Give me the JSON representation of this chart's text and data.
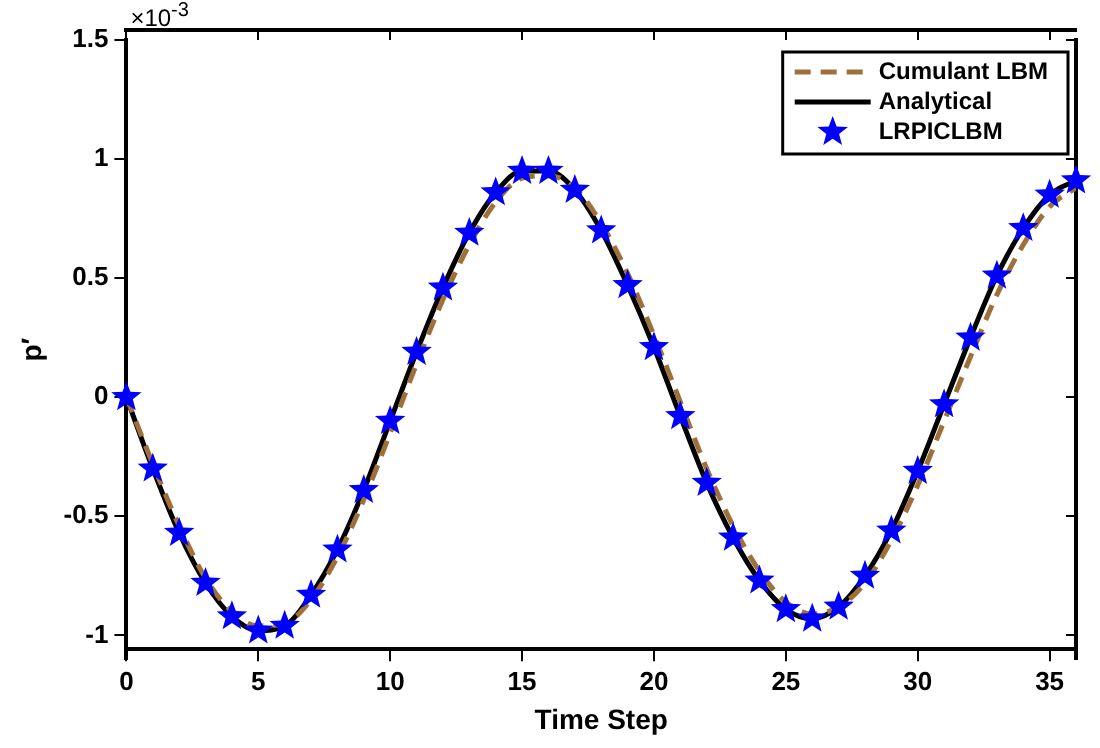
{
  "chart_data": {
    "type": "line",
    "xlabel": "Time Step",
    "ylabel": "p′",
    "annotations": [
      "×10$^{-3}$"
    ],
    "x": [
      0,
      1,
      2,
      3,
      4,
      5,
      6,
      7,
      8,
      9,
      10,
      11,
      12,
      13,
      14,
      15,
      16,
      17,
      18,
      19,
      20,
      21,
      22,
      23,
      24,
      25,
      26,
      27,
      28,
      29,
      30,
      31,
      32,
      33,
      34,
      35,
      36
    ],
    "xlim": [
      0,
      36
    ],
    "xticks": [
      0,
      5,
      10,
      15,
      20,
      25,
      30,
      35
    ],
    "ylim": [
      -1.1,
      1.5
    ],
    "yticks": [
      -1,
      -0.5,
      0,
      0.5,
      1,
      1.5
    ],
    "grid": false,
    "legend": "top right",
    "series": [
      {
        "name": "Cumulant LBM",
        "color": "#a0703a",
        "line_style": "dashed",
        "marker": "none",
        "values": [
          0,
          -0.28,
          -0.54,
          -0.76,
          -0.9,
          -0.96,
          -0.95,
          -0.85,
          -0.67,
          -0.43,
          -0.15,
          0.14,
          0.41,
          0.64,
          0.82,
          0.92,
          0.93,
          0.88,
          0.73,
          0.52,
          0.26,
          -0.02,
          -0.3,
          -0.54,
          -0.73,
          -0.86,
          -0.91,
          -0.88,
          -0.78,
          -0.6,
          -0.37,
          -0.1,
          0.17,
          0.43,
          0.64,
          0.8,
          0.88
        ]
      },
      {
        "name": "Analytical",
        "color": "#000000",
        "line_style": "solid",
        "marker": "none",
        "values": [
          0,
          -0.3,
          -0.57,
          -0.78,
          -0.92,
          -0.98,
          -0.96,
          -0.83,
          -0.64,
          -0.39,
          -0.1,
          0.19,
          0.46,
          0.69,
          0.86,
          0.95,
          0.95,
          0.87,
          0.7,
          0.47,
          0.21,
          -0.08,
          -0.36,
          -0.59,
          -0.77,
          -0.89,
          -0.93,
          -0.88,
          -0.75,
          -0.56,
          -0.31,
          -0.03,
          0.25,
          0.51,
          0.71,
          0.85,
          0.91
        ]
      },
      {
        "name": "LRPICLBM",
        "type": "scatter",
        "color": "#0000ff",
        "marker": "star",
        "values": [
          0,
          -0.3,
          -0.57,
          -0.78,
          -0.92,
          -0.98,
          -0.96,
          -0.83,
          -0.64,
          -0.39,
          -0.1,
          0.19,
          0.46,
          0.69,
          0.86,
          0.95,
          0.95,
          0.87,
          0.7,
          0.47,
          0.21,
          -0.08,
          -0.36,
          -0.59,
          -0.77,
          -0.89,
          -0.93,
          -0.88,
          -0.75,
          -0.56,
          -0.31,
          -0.03,
          0.25,
          0.51,
          0.71,
          0.85,
          0.91
        ]
      }
    ]
  }
}
